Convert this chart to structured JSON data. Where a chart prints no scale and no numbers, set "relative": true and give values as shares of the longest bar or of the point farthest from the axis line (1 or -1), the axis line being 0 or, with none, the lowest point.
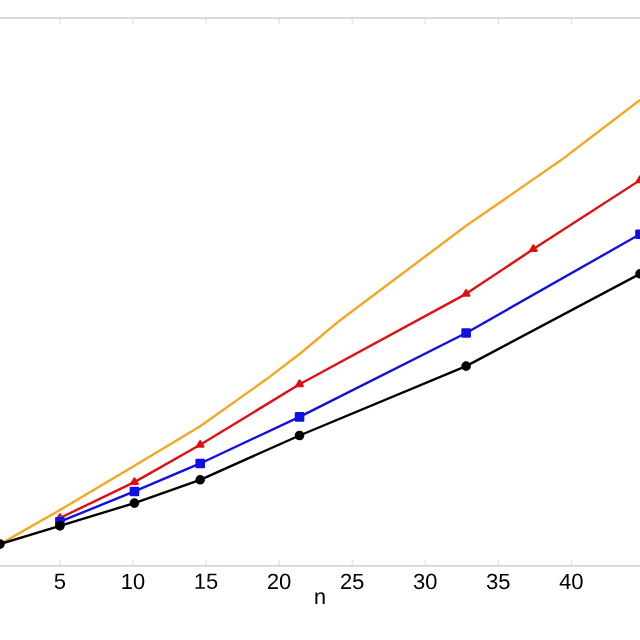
{
  "chart_data": {
    "type": "line",
    "xlabel": "n",
    "relative": true,
    "xlim": [
      0.9,
      44.7
    ],
    "xticks": [
      5,
      10,
      15,
      20,
      25,
      30,
      35,
      40
    ],
    "series": [
      {
        "color": "#f5a623",
        "marker": "none",
        "x": [
          0.9,
          5.0,
          10.1,
          14.6,
          19.1,
          21.4,
          24.2,
          32.8,
          39.3,
          44.7
        ],
        "values": [
          0.047,
          0.12,
          0.215,
          0.3,
          0.4,
          0.455,
          0.528,
          0.73,
          0.871,
          1.0
        ]
      },
      {
        "color": "#e01010",
        "marker": "triangle",
        "x": [
          5.0,
          10.1,
          14.6,
          21.4,
          32.8,
          37.4,
          44.7
        ],
        "values": [
          0.103,
          0.18,
          0.26,
          0.39,
          0.584,
          0.68,
          0.828
        ]
      },
      {
        "color": "#1010e0",
        "marker": "square",
        "x": [
          5.0,
          10.1,
          14.6,
          21.4,
          32.8,
          44.7
        ],
        "values": [
          0.095,
          0.16,
          0.22,
          0.32,
          0.5,
          0.712
        ]
      },
      {
        "color": "#000000",
        "marker": "circle",
        "x": [
          0.9,
          5.0,
          10.1,
          14.6,
          21.4,
          32.8,
          44.7
        ],
        "values": [
          0.047,
          0.086,
          0.135,
          0.185,
          0.28,
          0.429,
          0.627
        ]
      }
    ]
  }
}
